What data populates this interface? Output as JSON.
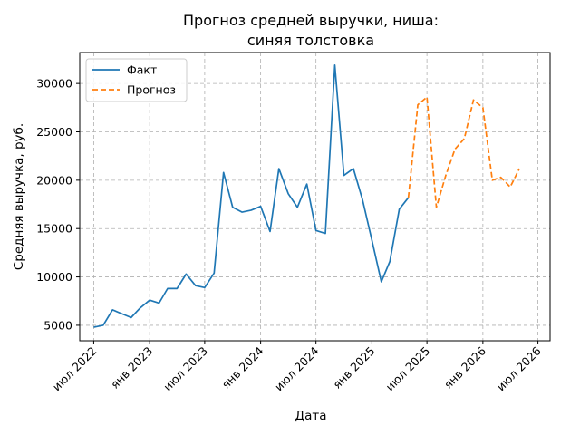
{
  "chart_data": {
    "type": "line",
    "title_line1": "Прогноз средней выручки, ниша:",
    "title_line2": "синяя толстовка",
    "xlabel": "Дата",
    "ylabel": "Средняя выручка, руб.",
    "ylim": [
      3400,
      33200
    ],
    "xlim": [
      "2022-05-16",
      "2026-08-10"
    ],
    "y_ticks": [
      5000,
      10000,
      15000,
      20000,
      25000,
      30000
    ],
    "x_ticks": [
      {
        "date": "2022-07-01",
        "label": "июл 2022"
      },
      {
        "date": "2023-01-01",
        "label": "янв 2023"
      },
      {
        "date": "2023-07-01",
        "label": "июл 2023"
      },
      {
        "date": "2024-01-01",
        "label": "янв 2024"
      },
      {
        "date": "2024-07-01",
        "label": "июл 2024"
      },
      {
        "date": "2025-01-01",
        "label": "янв 2025"
      },
      {
        "date": "2025-07-01",
        "label": "июл 2025"
      },
      {
        "date": "2026-01-01",
        "label": "янв 2026"
      },
      {
        "date": "2026-07-01",
        "label": "июл 2026"
      }
    ],
    "grid": true,
    "legend_position": "top-left",
    "series": [
      {
        "name": "Факт",
        "color": "#1f77b4",
        "style": "solid",
        "x": [
          "2022-07-01",
          "2022-08-01",
          "2022-09-01",
          "2022-10-01",
          "2022-11-01",
          "2022-12-01",
          "2023-01-01",
          "2023-02-01",
          "2023-03-01",
          "2023-04-01",
          "2023-05-01",
          "2023-06-01",
          "2023-07-01",
          "2023-08-01",
          "2023-09-01",
          "2023-10-01",
          "2023-11-01",
          "2023-12-01",
          "2024-01-01",
          "2024-02-01",
          "2024-03-01",
          "2024-04-01",
          "2024-05-01",
          "2024-06-01",
          "2024-07-01",
          "2024-08-01",
          "2024-09-01",
          "2024-10-01",
          "2024-11-01",
          "2024-12-01",
          "2025-01-01",
          "2025-02-01",
          "2025-03-01",
          "2025-04-01",
          "2025-05-01"
        ],
        "y": [
          4800,
          5000,
          6600,
          6200,
          5800,
          6800,
          7600,
          7300,
          8800,
          8800,
          10300,
          9100,
          8900,
          10400,
          20800,
          17200,
          16700,
          16900,
          17300,
          14700,
          21200,
          18600,
          17200,
          19600,
          14800,
          14500,
          31900,
          20500,
          21200,
          18000,
          13800,
          9500,
          11600,
          17000,
          18200
        ]
      },
      {
        "name": "Прогноз",
        "color": "#ff7f0e",
        "style": "dashed",
        "x": [
          "2025-05-01",
          "2025-06-01",
          "2025-07-01",
          "2025-08-01",
          "2025-09-01",
          "2025-10-01",
          "2025-11-01",
          "2025-12-01",
          "2026-01-01",
          "2026-02-01",
          "2026-03-01",
          "2026-04-01",
          "2026-05-01"
        ],
        "y": [
          18200,
          27800,
          28600,
          17200,
          20500,
          23200,
          24300,
          28300,
          27500,
          20000,
          20300,
          19300,
          21200
        ]
      }
    ]
  }
}
